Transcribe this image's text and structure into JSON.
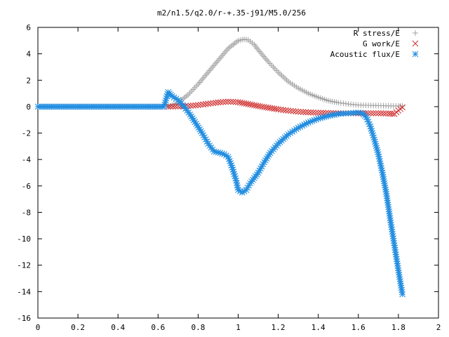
{
  "chart_data": {
    "type": "scatter",
    "title": "m2/n1.5/q2.0/r-+.35-j91/M5.0/256",
    "xlabel": "",
    "ylabel": "",
    "xlim": [
      0,
      2
    ],
    "ylim": [
      -16,
      6
    ],
    "xticks": [
      "0",
      "0.2",
      "0.4",
      "0.6",
      "0.8",
      "1",
      "1.2",
      "1.4",
      "1.6",
      "1.8",
      "2"
    ],
    "yticks": [
      "6",
      "4",
      "2",
      "0",
      "-2",
      "-4",
      "-6",
      "-8",
      "-10",
      "-12",
      "-14",
      "-16"
    ],
    "grid": false,
    "legend_position": "top-right",
    "series": [
      {
        "name": "R stress/E",
        "marker": "plus",
        "color": "#a0a0a0",
        "x": [
          0.65,
          0.7,
          0.75,
          0.8,
          0.85,
          0.9,
          0.95,
          1.0,
          1.03,
          1.05,
          1.08,
          1.1,
          1.15,
          1.2,
          1.25,
          1.3,
          1.35,
          1.4,
          1.45,
          1.5,
          1.55,
          1.6,
          1.65,
          1.7,
          1.75,
          1.8,
          1.82
        ],
        "y": [
          0.0,
          0.3,
          0.9,
          1.7,
          2.6,
          3.5,
          4.4,
          5.0,
          5.1,
          5.05,
          4.7,
          4.3,
          3.4,
          2.6,
          1.9,
          1.4,
          1.0,
          0.7,
          0.45,
          0.3,
          0.2,
          0.12,
          0.1,
          0.08,
          0.06,
          0.05,
          0.05
        ]
      },
      {
        "name": "G work/E",
        "marker": "cross",
        "color": "#d03030",
        "x": [
          0.65,
          0.7,
          0.75,
          0.8,
          0.85,
          0.9,
          0.95,
          1.0,
          1.05,
          1.1,
          1.15,
          1.2,
          1.25,
          1.3,
          1.35,
          1.4,
          1.45,
          1.5,
          1.55,
          1.6,
          1.65,
          1.7,
          1.75,
          1.78,
          1.8,
          1.82
        ],
        "y": [
          0.0,
          0.02,
          0.05,
          0.12,
          0.22,
          0.32,
          0.38,
          0.34,
          0.2,
          0.05,
          -0.08,
          -0.2,
          -0.3,
          -0.38,
          -0.43,
          -0.46,
          -0.48,
          -0.5,
          -0.5,
          -0.5,
          -0.5,
          -0.5,
          -0.52,
          -0.55,
          -0.3,
          -0.05
        ]
      },
      {
        "name": "Acoustic flux/E",
        "marker": "star",
        "color": "#1f8ce0",
        "x": [
          0.0,
          0.03,
          0.06,
          0.09,
          0.12,
          0.15,
          0.18,
          0.21,
          0.24,
          0.27,
          0.3,
          0.33,
          0.36,
          0.39,
          0.42,
          0.45,
          0.48,
          0.51,
          0.54,
          0.57,
          0.6,
          0.63,
          0.65,
          0.67,
          0.7,
          0.73,
          0.76,
          0.79,
          0.82,
          0.85,
          0.88,
          0.91,
          0.93,
          0.95,
          0.97,
          0.99,
          1.0,
          1.02,
          1.04,
          1.06,
          1.08,
          1.1,
          1.13,
          1.16,
          1.2,
          1.25,
          1.3,
          1.35,
          1.4,
          1.45,
          1.5,
          1.55,
          1.6,
          1.62,
          1.64,
          1.66,
          1.68,
          1.7,
          1.72,
          1.74,
          1.76,
          1.78,
          1.8,
          1.82
        ],
        "y": [
          0.0,
          0.0,
          0.0,
          0.0,
          0.0,
          0.0,
          0.0,
          0.0,
          0.0,
          0.0,
          0.0,
          0.0,
          0.0,
          0.0,
          0.0,
          0.0,
          0.0,
          0.0,
          0.0,
          0.0,
          0.0,
          0.0,
          1.1,
          0.8,
          0.5,
          0.0,
          -0.6,
          -1.3,
          -2.0,
          -2.8,
          -3.4,
          -3.5,
          -3.6,
          -3.8,
          -4.6,
          -5.6,
          -6.3,
          -6.5,
          -6.3,
          -5.8,
          -5.4,
          -5.0,
          -4.2,
          -3.5,
          -2.8,
          -2.1,
          -1.6,
          -1.2,
          -0.9,
          -0.7,
          -0.55,
          -0.5,
          -0.45,
          -0.5,
          -0.8,
          -1.5,
          -2.5,
          -3.6,
          -5.0,
          -6.6,
          -8.6,
          -10.5,
          -12.4,
          -14.2
        ]
      }
    ]
  }
}
